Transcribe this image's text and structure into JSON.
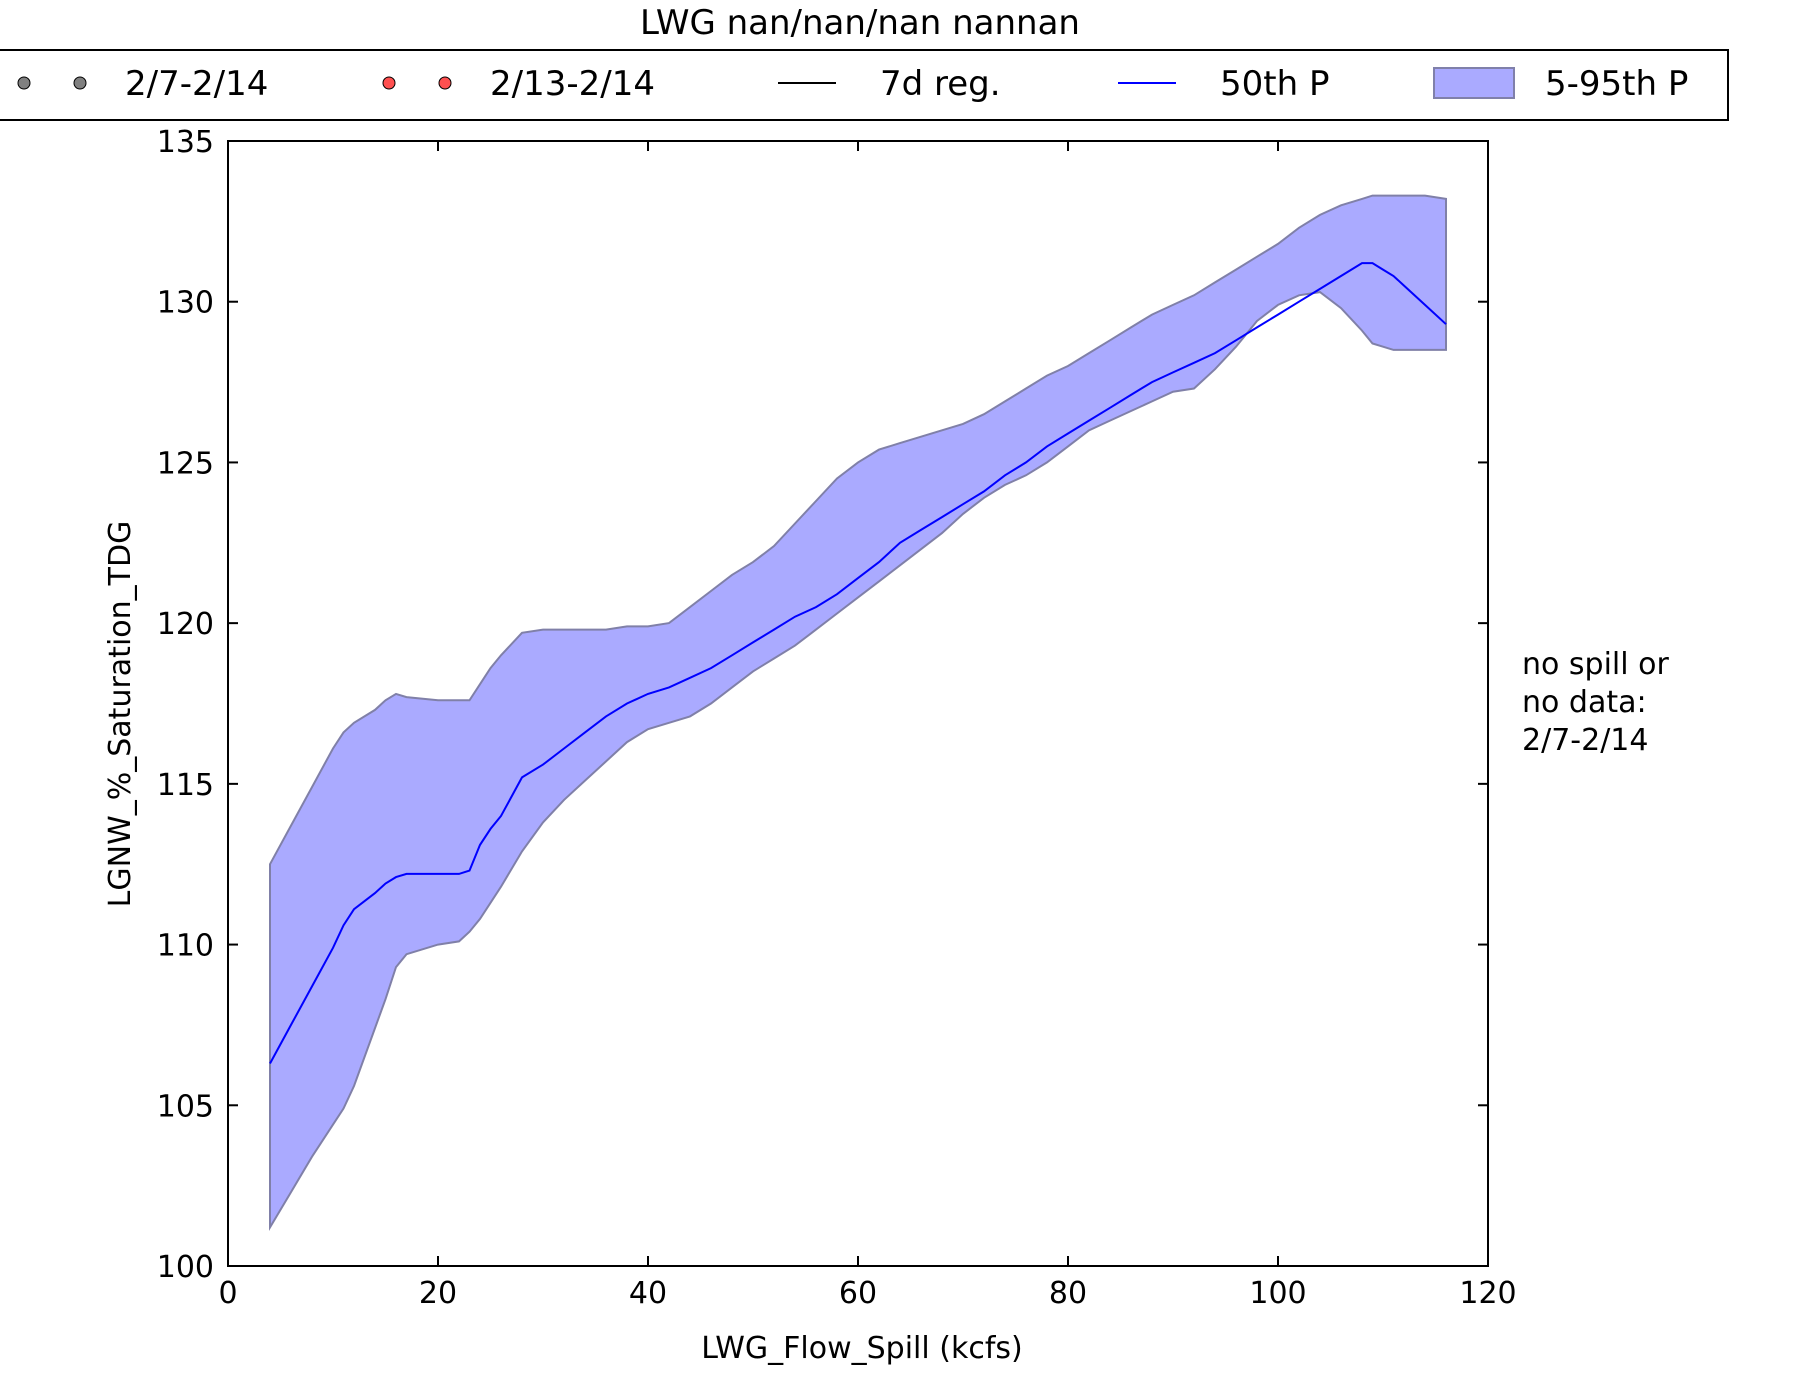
{
  "chart_data": {
    "type": "area",
    "title": "LWG nan/nan/nan nannan",
    "xlabel": "LWG_Flow_Spill (kcfs)",
    "ylabel": "LGNW_%_Saturation_TDG",
    "xlim": [
      0,
      120
    ],
    "ylim": [
      100,
      135
    ],
    "xticks": [
      0,
      20,
      40,
      60,
      80,
      100,
      120
    ],
    "yticks": [
      100,
      105,
      110,
      115,
      120,
      125,
      130,
      135
    ],
    "grid": false,
    "legend_position": "top",
    "legend": [
      {
        "label": "2/7-2/14",
        "kind": "markers",
        "color": "#808080"
      },
      {
        "label": "2/13-2/14",
        "kind": "markers",
        "color": "#ff5050"
      },
      {
        "label": "7d reg.",
        "kind": "line",
        "color": "#000000"
      },
      {
        "label": "50th P",
        "kind": "line",
        "color": "#0000ff"
      },
      {
        "label": "5-95th P",
        "kind": "patch",
        "color": "#aaaaff"
      }
    ],
    "annotation": [
      "no spill or",
      "no data:",
      "2/7-2/14"
    ],
    "series": [
      {
        "name": "50th P",
        "color": "#0000ff",
        "x": [
          4,
          6,
          8,
          10,
          11,
          12,
          14,
          15,
          16,
          17,
          20,
          22,
          23,
          24,
          25,
          26,
          28,
          30,
          32,
          34,
          36,
          38,
          40,
          42,
          44,
          46,
          48,
          50,
          52,
          54,
          56,
          58,
          60,
          62,
          64,
          66,
          68,
          70,
          72,
          74,
          76,
          78,
          80,
          82,
          84,
          86,
          88,
          90,
          92,
          94,
          96,
          98,
          100,
          102,
          104,
          106,
          108,
          109,
          110,
          111,
          112,
          114,
          116
        ],
        "y": [
          106.3,
          107.5,
          108.7,
          109.9,
          110.6,
          111.1,
          111.6,
          111.9,
          112.1,
          112.2,
          112.2,
          112.2,
          112.3,
          113.1,
          113.6,
          114.0,
          115.2,
          115.6,
          116.1,
          116.6,
          117.1,
          117.5,
          117.8,
          118.0,
          118.3,
          118.6,
          119.0,
          119.4,
          119.8,
          120.2,
          120.5,
          120.9,
          121.4,
          121.9,
          122.5,
          122.9,
          123.3,
          123.7,
          124.1,
          124.6,
          125.0,
          125.5,
          125.9,
          126.3,
          126.7,
          127.1,
          127.5,
          127.8,
          128.1,
          128.4,
          128.8,
          129.2,
          129.6,
          130.0,
          130.4,
          130.8,
          131.2,
          131.2,
          131.0,
          130.8,
          130.5,
          129.9,
          129.3
        ]
      },
      {
        "name": "5-95th P",
        "color": "#aaaaff",
        "x": [
          4,
          6,
          8,
          10,
          11,
          12,
          14,
          15,
          16,
          17,
          20,
          22,
          23,
          24,
          25,
          26,
          28,
          30,
          32,
          34,
          36,
          38,
          40,
          42,
          44,
          46,
          48,
          50,
          52,
          54,
          56,
          58,
          60,
          62,
          64,
          66,
          68,
          70,
          72,
          74,
          76,
          78,
          80,
          82,
          84,
          86,
          88,
          90,
          92,
          94,
          96,
          98,
          100,
          102,
          104,
          106,
          108,
          109,
          110,
          111,
          112,
          114,
          116
        ],
        "lower": [
          101.2,
          102.3,
          103.4,
          104.4,
          104.9,
          105.6,
          107.4,
          108.3,
          109.3,
          109.7,
          110.0,
          110.1,
          110.4,
          110.8,
          111.3,
          111.8,
          112.9,
          113.8,
          114.5,
          115.1,
          115.7,
          116.3,
          116.7,
          116.9,
          117.1,
          117.5,
          118.0,
          118.5,
          118.9,
          119.3,
          119.8,
          120.3,
          120.8,
          121.3,
          121.8,
          122.3,
          122.8,
          123.4,
          123.9,
          124.3,
          124.6,
          125.0,
          125.5,
          126.0,
          126.3,
          126.6,
          126.9,
          127.2,
          127.3,
          127.9,
          128.6,
          129.4,
          129.9,
          130.2,
          130.3,
          129.8,
          129.1,
          128.7,
          128.6,
          128.5,
          128.5,
          128.5,
          128.5
        ],
        "upper": [
          112.5,
          113.7,
          114.9,
          116.1,
          116.6,
          116.9,
          117.3,
          117.6,
          117.8,
          117.7,
          117.6,
          117.6,
          117.6,
          118.1,
          118.6,
          119.0,
          119.7,
          119.8,
          119.8,
          119.8,
          119.8,
          119.9,
          119.9,
          120.0,
          120.5,
          121.0,
          121.5,
          121.9,
          122.4,
          123.1,
          123.8,
          124.5,
          125.0,
          125.4,
          125.6,
          125.8,
          126.0,
          126.2,
          126.5,
          126.9,
          127.3,
          127.7,
          128.0,
          128.4,
          128.8,
          129.2,
          129.6,
          129.9,
          130.2,
          130.6,
          131.0,
          131.4,
          131.8,
          132.3,
          132.7,
          133.0,
          133.2,
          133.3,
          133.3,
          133.3,
          133.3,
          133.3,
          133.2
        ]
      }
    ]
  }
}
